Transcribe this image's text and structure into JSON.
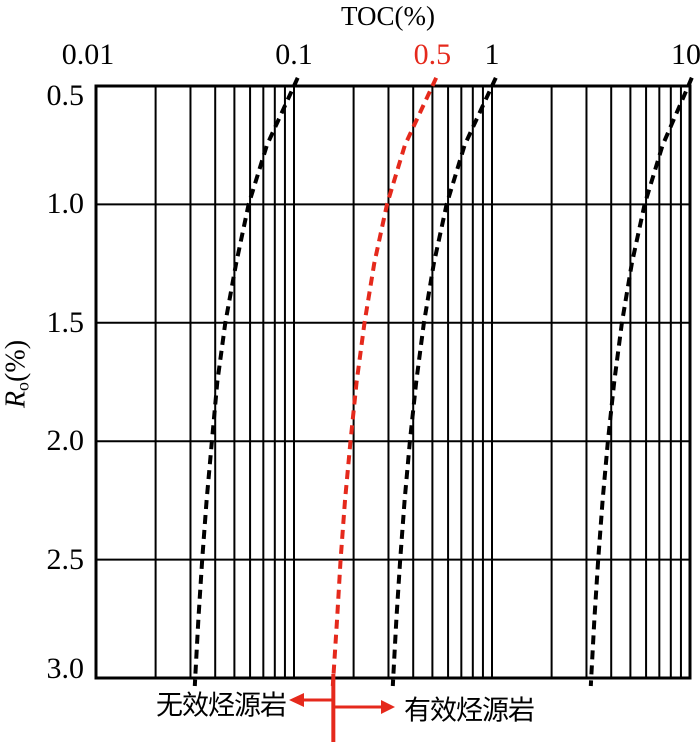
{
  "chart": {
    "title": "TOC(%)",
    "y_axis": {
      "label_r": "R",
      "label_sub": "o",
      "label_unit": "(%)"
    }
  },
  "chart_data": {
    "type": "line",
    "title": "TOC(%)",
    "xlabel": "TOC(%)",
    "ylabel": "Ro(%)",
    "x_scale": "log",
    "x_range": [
      0.01,
      10
    ],
    "y_range": [
      0.5,
      3.0
    ],
    "y_inverted": true,
    "grid": {
      "vertical": "log decades with 2-9 minors",
      "horizontal": "major y ticks only"
    },
    "x_ticks": [
      {
        "label": "0.01",
        "value": 0.01,
        "color": "#000000"
      },
      {
        "label": "0.1",
        "value": 0.1,
        "color": "#000000"
      },
      {
        "label": "0.5",
        "value": 0.5,
        "color": "#e5291c"
      },
      {
        "label": "1",
        "value": 1,
        "color": "#000000"
      },
      {
        "label": "10",
        "value": 10,
        "color": "#000000"
      }
    ],
    "y_ticks": [
      {
        "label": "0.5",
        "value": 0.5
      },
      {
        "label": "1.0",
        "value": 1.0
      },
      {
        "label": "1.5",
        "value": 1.5
      },
      {
        "label": "2.0",
        "value": 2.0
      },
      {
        "label": "2.5",
        "value": 2.5
      },
      {
        "label": "3.0",
        "value": 3.0
      }
    ],
    "ro": [
      0.5,
      0.75,
      1.0,
      1.25,
      1.5,
      1.75,
      2.0,
      2.25,
      2.5,
      2.75,
      3.0
    ],
    "series": [
      {
        "name": "toc-bound-0.1",
        "color": "#000000",
        "dashed": true,
        "toc": [
          0.1,
          0.073,
          0.059,
          0.051,
          0.045,
          0.041,
          0.0385,
          0.0362,
          0.0344,
          0.0329,
          0.0317
        ]
      },
      {
        "name": "toc-threshold-0.5-red",
        "color": "#e5291c",
        "dashed": true,
        "toc": [
          0.5,
          0.363,
          0.295,
          0.254,
          0.227,
          0.207,
          0.193,
          0.181,
          0.172,
          0.165,
          0.158
        ]
      },
      {
        "name": "toc-bound-1",
        "color": "#000000",
        "dashed": true,
        "toc": [
          1.0,
          0.727,
          0.59,
          0.508,
          0.453,
          0.414,
          0.385,
          0.362,
          0.344,
          0.329,
          0.317
        ]
      },
      {
        "name": "toc-bound-10",
        "color": "#000000",
        "dashed": true,
        "toc": [
          9.8,
          7.27,
          5.9,
          5.08,
          4.53,
          4.14,
          3.85,
          3.62,
          3.44,
          3.29,
          3.17
        ]
      }
    ],
    "divider": {
      "toc": 0.158,
      "color": "#e5291c"
    }
  },
  "annotations": {
    "left_label": "无效烃源岩",
    "right_label": "有效烃源岩",
    "text_color": "#000000",
    "arrow_color": "#e5291c"
  }
}
